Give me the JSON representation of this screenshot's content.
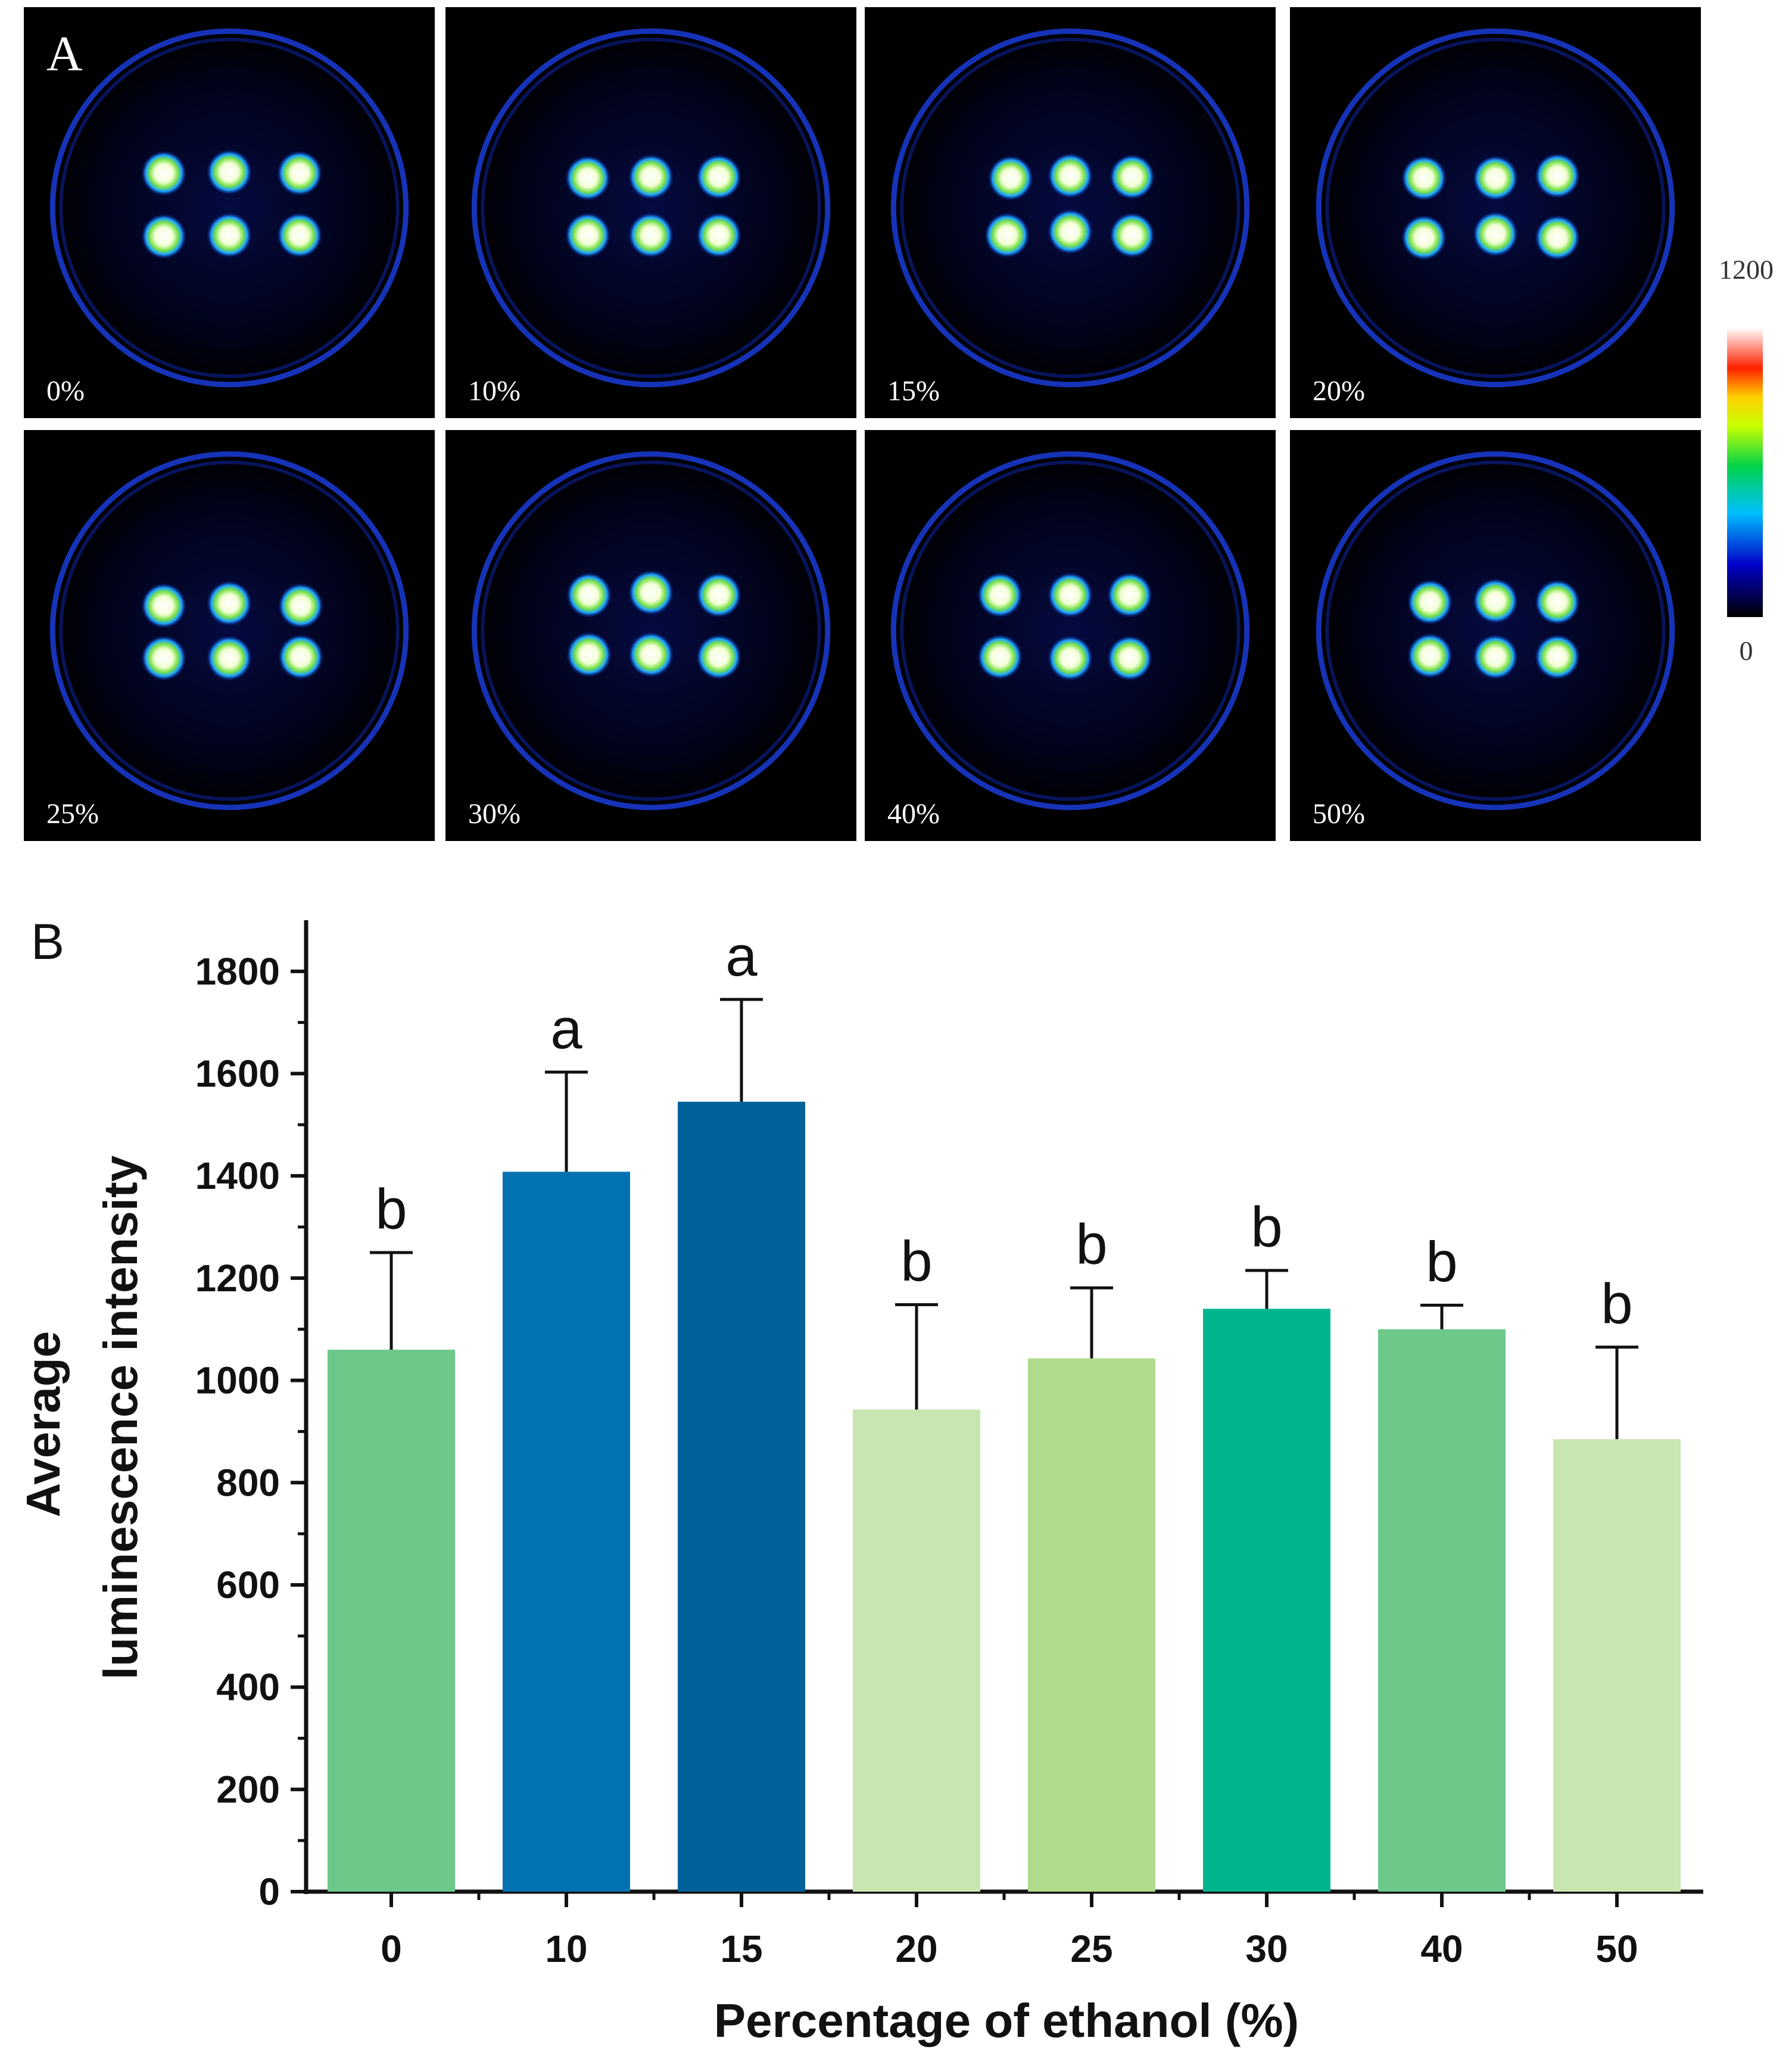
{
  "panel_a": {
    "label": "A",
    "images": [
      {
        "label": "0%"
      },
      {
        "label": "10%"
      },
      {
        "label": "15%"
      },
      {
        "label": "20%"
      },
      {
        "label": "25%"
      },
      {
        "label": "30%"
      },
      {
        "label": "40%"
      },
      {
        "label": "50%"
      }
    ],
    "colorbar": {
      "max_label": "1200",
      "min_label": "0",
      "max_value": 1200,
      "min_value": 0
    }
  },
  "panel_b": {
    "label": "B"
  },
  "chart_data": {
    "type": "bar",
    "title": "",
    "xlabel": "Percentage of ethanol (%)",
    "ylabel_lines": [
      "Average",
      "luminescence intensity"
    ],
    "ylim": [
      0,
      1900
    ],
    "yticks": [
      0,
      200,
      400,
      600,
      800,
      1000,
      1200,
      1400,
      1600,
      1800
    ],
    "categories": [
      "0",
      "10",
      "15",
      "20",
      "25",
      "30",
      "40",
      "50"
    ],
    "values": [
      1060,
      1408,
      1545,
      943,
      1043,
      1140,
      1100,
      885
    ],
    "error": [
      190,
      195,
      200,
      205,
      138,
      75,
      47,
      180
    ],
    "significance": [
      "b",
      "a",
      "a",
      "b",
      "b",
      "b",
      "b",
      "b"
    ],
    "colors": [
      "#6cc98a",
      "#0272b3",
      "#016199",
      "#c8e6b0",
      "#b0db8c",
      "#00b58e",
      "#6cc98a",
      "#c8e6b0"
    ],
    "grid": false,
    "legend": "none"
  }
}
